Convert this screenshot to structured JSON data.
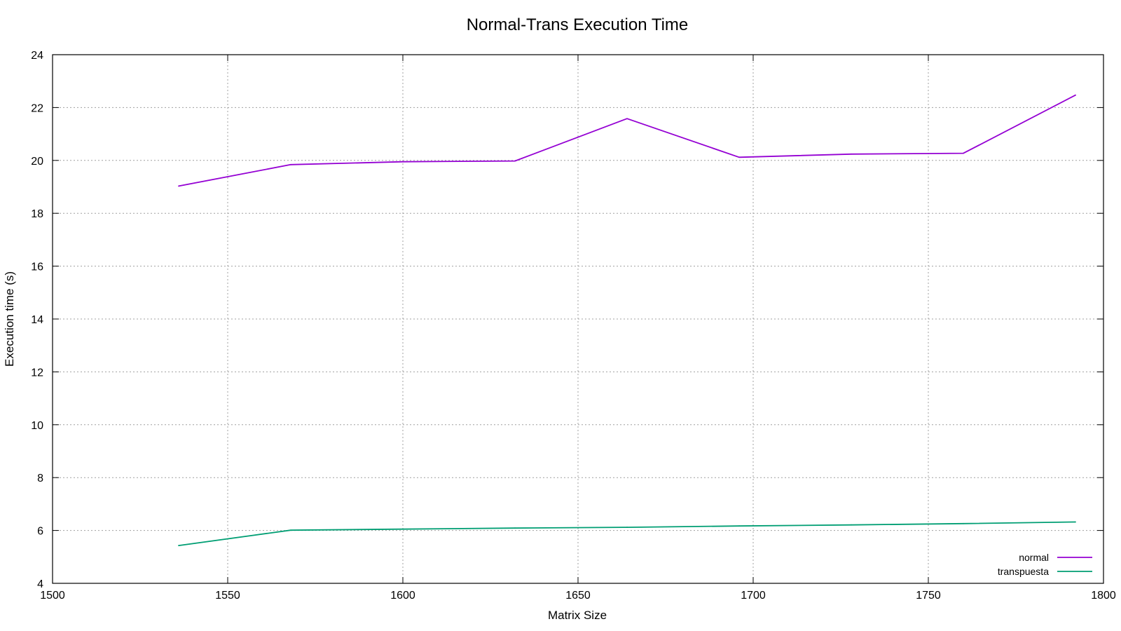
{
  "chart_data": {
    "type": "line",
    "title": "Normal-Trans Execution Time",
    "xlabel": "Matrix Size",
    "ylabel": "Execution time (s)",
    "xlim": [
      1500,
      1800
    ],
    "ylim": [
      4,
      24
    ],
    "xticks": [
      1500,
      1550,
      1600,
      1650,
      1700,
      1750,
      1800
    ],
    "yticks": [
      4,
      6,
      8,
      10,
      12,
      14,
      16,
      18,
      20,
      22,
      24
    ],
    "grid": true,
    "legend_position": "bottom-right",
    "series": [
      {
        "name": "normal",
        "color": "#9400d3",
        "x": [
          1536,
          1568,
          1600,
          1632,
          1664,
          1696,
          1728,
          1760,
          1792
        ],
        "y": [
          19.03,
          19.84,
          19.95,
          19.98,
          21.58,
          20.12,
          20.24,
          20.27,
          22.47
        ]
      },
      {
        "name": "transpuesta",
        "color": "#009e73",
        "x": [
          1536,
          1568,
          1600,
          1632,
          1664,
          1696,
          1728,
          1760,
          1792
        ],
        "y": [
          5.43,
          6.01,
          6.05,
          6.09,
          6.12,
          6.17,
          6.21,
          6.26,
          6.32
        ]
      }
    ]
  }
}
